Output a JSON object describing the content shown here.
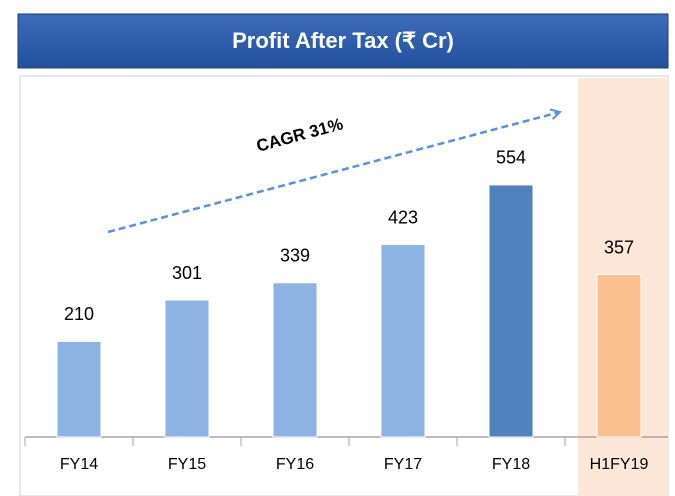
{
  "chart_data": {
    "type": "bar",
    "title": "Profit After Tax (₹ Cr)",
    "annotation": "CAGR 31%",
    "categories": [
      "FY14",
      "FY15",
      "FY16",
      "FY17",
      "FY18",
      "H1FY19"
    ],
    "values": [
      210,
      301,
      339,
      423,
      554,
      357
    ],
    "colors": [
      "#8db3e2",
      "#8db3e2",
      "#8db3e2",
      "#8db3e2",
      "#4f81bd",
      "#fac090"
    ],
    "ylim": [
      0,
      600
    ]
  }
}
